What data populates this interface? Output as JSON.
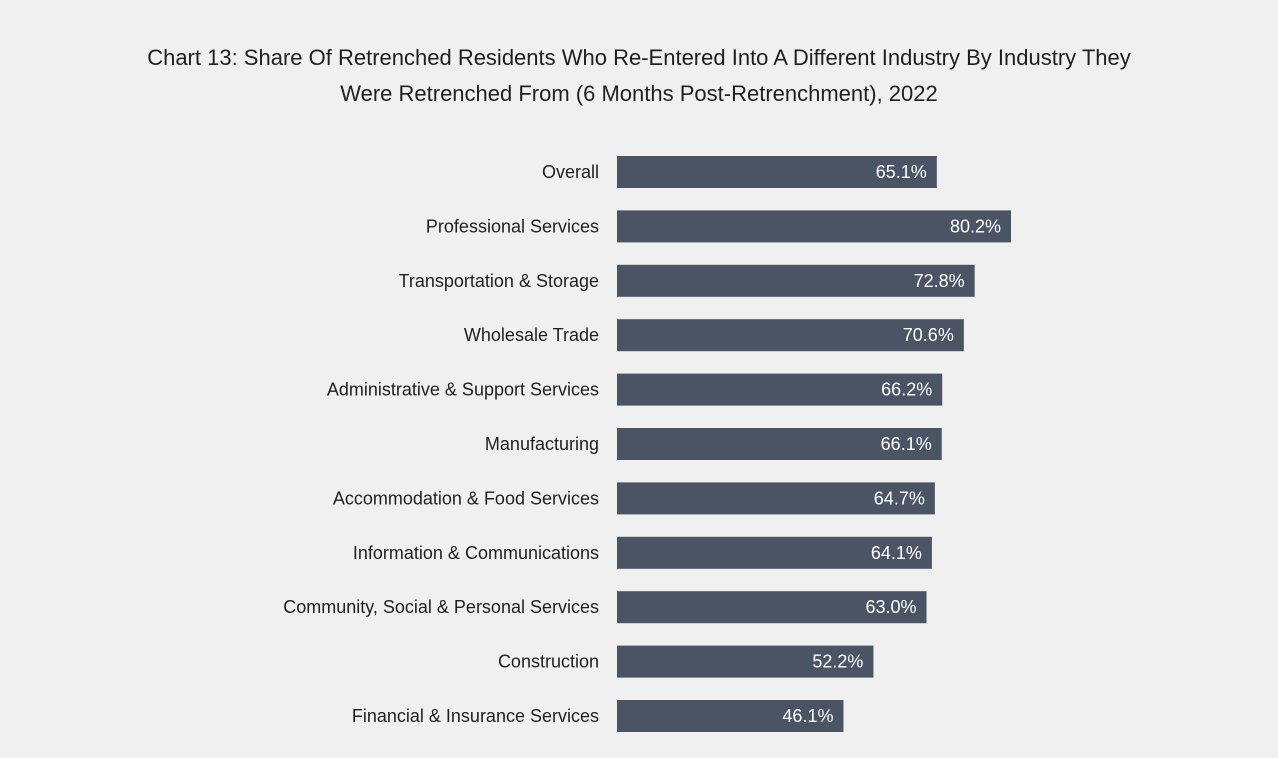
{
  "chart_data": {
    "type": "bar",
    "orientation": "horizontal",
    "title_line1": "Chart 13: Share Of Retrenched Residents Who Re-Entered Into A Different Industry By Industry They",
    "title_line2": "Were Retrenched From (6 Months Post-Retrenchment), 2022",
    "categories": [
      "Overall",
      "Professional Services",
      "Transportation & Storage",
      "Wholesale Trade",
      "Administrative & Support Services",
      "Manufacturing",
      "Accommodation & Food Services",
      "Information & Communications",
      "Community, Social & Personal Services",
      "Construction",
      "Financial & Insurance Services"
    ],
    "values": [
      65.1,
      80.2,
      72.8,
      70.6,
      66.2,
      66.1,
      64.7,
      64.1,
      63.0,
      52.2,
      46.1
    ],
    "value_labels": [
      "65.1%",
      "80.2%",
      "72.8%",
      "70.6%",
      "66.2%",
      "66.1%",
      "64.7%",
      "64.1%",
      "63.0%",
      "52.2%",
      "46.1%"
    ],
    "xlabel": "",
    "ylabel": "",
    "grid": false,
    "legend": "none",
    "bar_color": "#4a5465",
    "background_color": "#f0f0f0"
  }
}
